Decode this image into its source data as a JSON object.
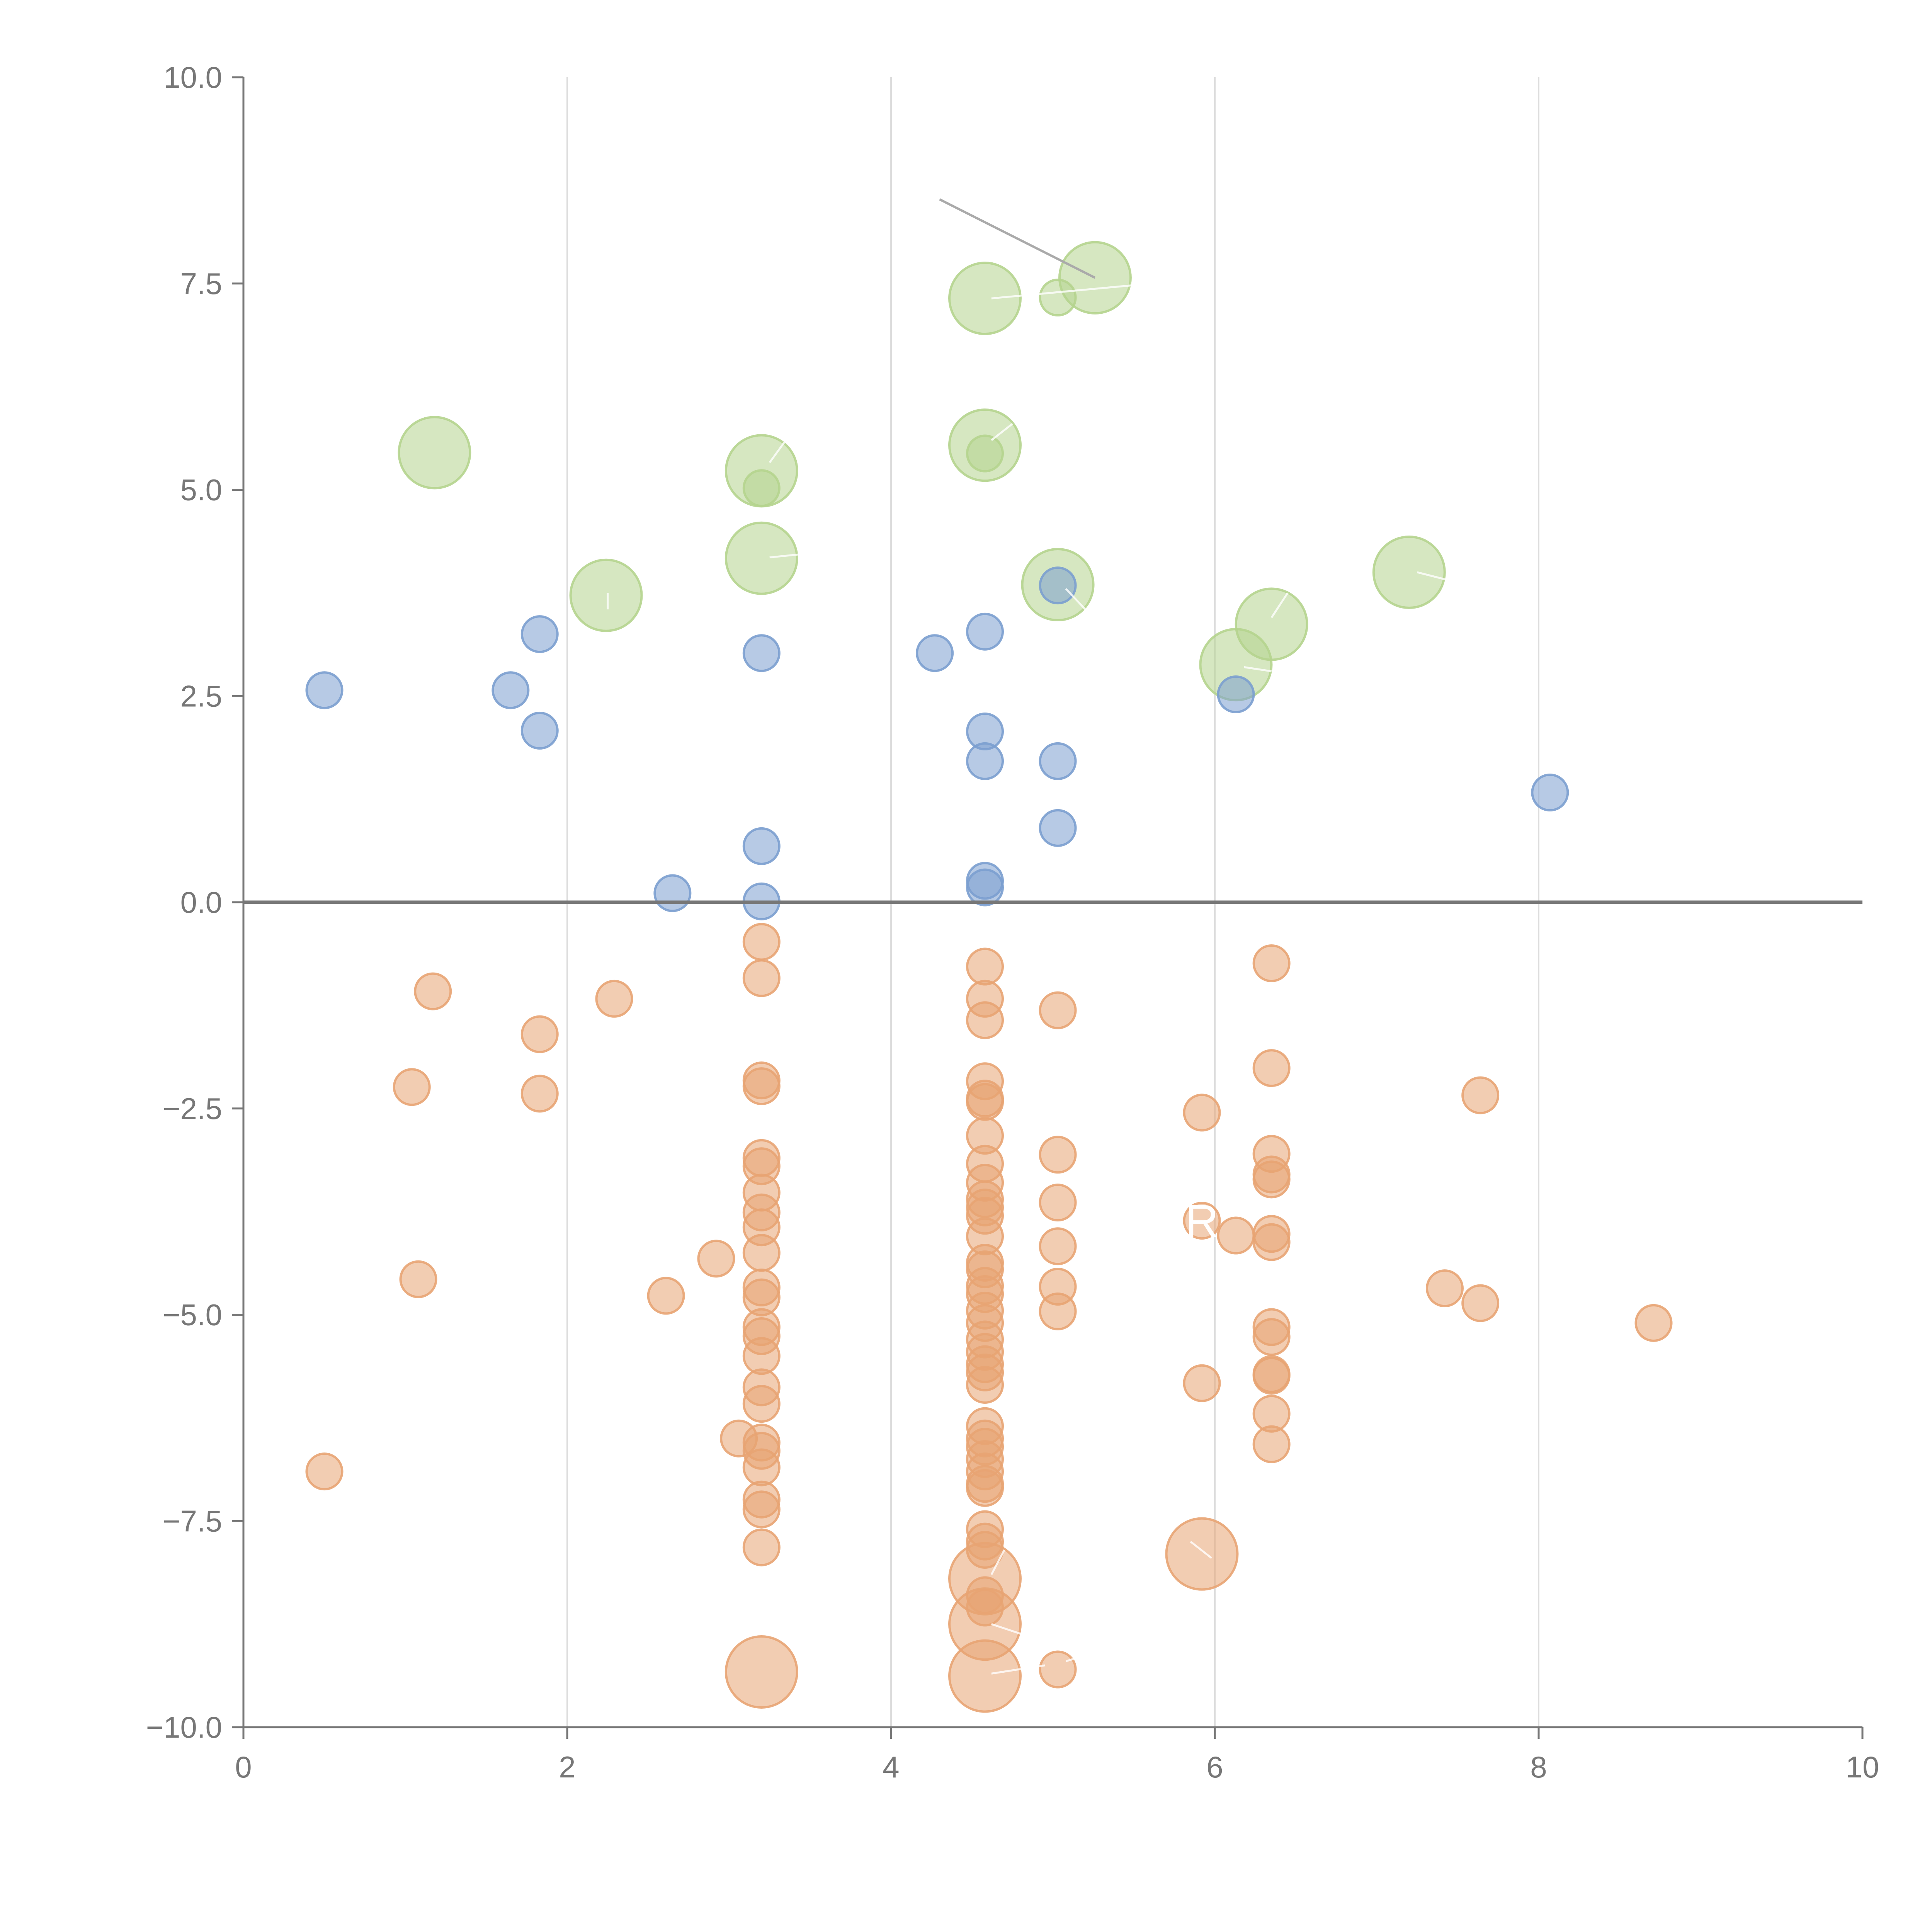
{
  "chart_data": {
    "type": "scatter",
    "title": "",
    "xlabel": "",
    "ylabel": "",
    "xlim": [
      0,
      10
    ],
    "ylim": [
      -10,
      10
    ],
    "x_ticks": [
      "0",
      "2",
      "4",
      "6",
      "8",
      "10"
    ],
    "y_ticks": [
      "−10.0",
      "−7.5",
      "−5.0",
      "−2.5",
      "0.0",
      "2.5",
      "5.0",
      "7.5",
      "10.0"
    ],
    "x_tick_values": [
      0,
      2,
      4,
      6,
      8,
      10
    ],
    "y_tick_values": [
      -10,
      -7.5,
      -5,
      -2.5,
      0,
      2.5,
      5,
      7.5,
      10
    ],
    "grid": "vertical",
    "reference_line_y": 0,
    "colors": {
      "green": "#b5d48e",
      "blue": "#7b9ecf",
      "orange": "#e8a473"
    },
    "series": [
      {
        "name": "green",
        "color": "#b5d48e",
        "points": [
          {
            "x": 1.18,
            "y": 5.45,
            "size": "large"
          },
          {
            "x": 2.24,
            "y": 3.72,
            "size": "large"
          },
          {
            "x": 3.2,
            "y": 5.23,
            "size": "large"
          },
          {
            "x": 3.2,
            "y": 5.02,
            "size": "small"
          },
          {
            "x": 3.2,
            "y": 4.17,
            "size": "large"
          },
          {
            "x": 4.58,
            "y": 7.32,
            "size": "large"
          },
          {
            "x": 5.03,
            "y": 7.33,
            "size": "small"
          },
          {
            "x": 5.26,
            "y": 7.57,
            "size": "large"
          },
          {
            "x": 4.58,
            "y": 5.54,
            "size": "large"
          },
          {
            "x": 4.58,
            "y": 5.44,
            "size": "small"
          },
          {
            "x": 5.03,
            "y": 3.85,
            "size": "large"
          },
          {
            "x": 6.35,
            "y": 3.37,
            "size": "large"
          },
          {
            "x": 6.13,
            "y": 2.88,
            "size": "large"
          },
          {
            "x": 7.2,
            "y": 4.0,
            "size": "large"
          }
        ]
      },
      {
        "name": "blue",
        "color": "#7b9ecf",
        "points": [
          {
            "x": 0.5,
            "y": 2.57
          },
          {
            "x": 1.65,
            "y": 2.57
          },
          {
            "x": 1.83,
            "y": 3.25
          },
          {
            "x": 1.83,
            "y": 2.08
          },
          {
            "x": 2.65,
            "y": 0.11
          },
          {
            "x": 3.2,
            "y": 3.02
          },
          {
            "x": 3.2,
            "y": 0.68
          },
          {
            "x": 3.2,
            "y": 0.01
          },
          {
            "x": 4.27,
            "y": 3.02
          },
          {
            "x": 4.58,
            "y": 3.28
          },
          {
            "x": 4.58,
            "y": 2.07
          },
          {
            "x": 4.58,
            "y": 1.71
          },
          {
            "x": 4.58,
            "y": 0.26
          },
          {
            "x": 4.58,
            "y": 0.18
          },
          {
            "x": 5.03,
            "y": 3.84
          },
          {
            "x": 5.03,
            "y": 1.71
          },
          {
            "x": 5.03,
            "y": 0.9
          },
          {
            "x": 6.13,
            "y": 2.52
          },
          {
            "x": 8.07,
            "y": 1.33
          }
        ]
      },
      {
        "name": "orange",
        "color": "#e8a473",
        "points": [
          {
            "x": 0.5,
            "y": -6.9
          },
          {
            "x": 1.04,
            "y": -2.24
          },
          {
            "x": 1.08,
            "y": -4.57
          },
          {
            "x": 1.17,
            "y": -1.08
          },
          {
            "x": 1.83,
            "y": -1.6
          },
          {
            "x": 1.83,
            "y": -2.32
          },
          {
            "x": 2.29,
            "y": -1.17
          },
          {
            "x": 2.61,
            "y": -4.77
          },
          {
            "x": 2.92,
            "y": -4.32
          },
          {
            "x": 3.06,
            "y": -6.5
          },
          {
            "x": 3.2,
            "y": -0.48
          },
          {
            "x": 3.2,
            "y": -0.92
          },
          {
            "x": 3.2,
            "y": -2.16
          },
          {
            "x": 3.2,
            "y": -2.23
          },
          {
            "x": 3.2,
            "y": -3.1
          },
          {
            "x": 3.2,
            "y": -3.2
          },
          {
            "x": 3.2,
            "y": -3.52
          },
          {
            "x": 3.2,
            "y": -3.76
          },
          {
            "x": 3.2,
            "y": -3.94
          },
          {
            "x": 3.2,
            "y": -4.25
          },
          {
            "x": 3.2,
            "y": -4.67
          },
          {
            "x": 3.2,
            "y": -4.79
          },
          {
            "x": 3.2,
            "y": -5.15
          },
          {
            "x": 3.2,
            "y": -5.26
          },
          {
            "x": 3.2,
            "y": -5.5
          },
          {
            "x": 3.2,
            "y": -5.88
          },
          {
            "x": 3.2,
            "y": -6.08
          },
          {
            "x": 3.2,
            "y": -6.55
          },
          {
            "x": 3.2,
            "y": -6.65
          },
          {
            "x": 3.2,
            "y": -6.85
          },
          {
            "x": 3.2,
            "y": -7.24
          },
          {
            "x": 3.2,
            "y": -7.36
          },
          {
            "x": 3.2,
            "y": -7.82
          },
          {
            "x": 3.2,
            "y": -9.33,
            "size": "large"
          },
          {
            "x": 4.58,
            "y": -0.78
          },
          {
            "x": 4.58,
            "y": -1.17
          },
          {
            "x": 4.58,
            "y": -1.43
          },
          {
            "x": 4.58,
            "y": -2.17
          },
          {
            "x": 4.58,
            "y": -2.38
          },
          {
            "x": 4.58,
            "y": -2.42
          },
          {
            "x": 4.58,
            "y": -2.83
          },
          {
            "x": 4.58,
            "y": -3.17
          },
          {
            "x": 4.58,
            "y": -3.4
          },
          {
            "x": 4.58,
            "y": -3.6
          },
          {
            "x": 4.58,
            "y": -3.7
          },
          {
            "x": 4.58,
            "y": -3.8
          },
          {
            "x": 4.58,
            "y": -4.05
          },
          {
            "x": 4.58,
            "y": -4.37
          },
          {
            "x": 4.58,
            "y": -4.45
          },
          {
            "x": 4.58,
            "y": -4.65
          },
          {
            "x": 4.58,
            "y": -4.75
          },
          {
            "x": 4.58,
            "y": -4.95
          },
          {
            "x": 4.58,
            "y": -5.1
          },
          {
            "x": 4.58,
            "y": -5.3
          },
          {
            "x": 4.58,
            "y": -5.45
          },
          {
            "x": 4.58,
            "y": -5.6
          },
          {
            "x": 4.58,
            "y": -5.7
          },
          {
            "x": 4.58,
            "y": -5.85
          },
          {
            "x": 4.58,
            "y": -6.35
          },
          {
            "x": 4.58,
            "y": -6.5
          },
          {
            "x": 4.58,
            "y": -6.6
          },
          {
            "x": 4.58,
            "y": -6.75
          },
          {
            "x": 4.58,
            "y": -6.9
          },
          {
            "x": 4.58,
            "y": -7.05
          },
          {
            "x": 4.58,
            "y": -7.1
          },
          {
            "x": 4.58,
            "y": -7.6
          },
          {
            "x": 4.58,
            "y": -7.75
          },
          {
            "x": 4.58,
            "y": -7.85
          },
          {
            "x": 4.58,
            "y": -8.2,
            "size": "large"
          },
          {
            "x": 4.58,
            "y": -8.4
          },
          {
            "x": 4.58,
            "y": -8.55
          },
          {
            "x": 4.58,
            "y": -8.75,
            "size": "large"
          },
          {
            "x": 4.58,
            "y": -9.38,
            "size": "large"
          },
          {
            "x": 5.03,
            "y": -1.31
          },
          {
            "x": 5.03,
            "y": -3.06
          },
          {
            "x": 5.03,
            "y": -3.64
          },
          {
            "x": 5.03,
            "y": -4.17
          },
          {
            "x": 5.03,
            "y": -4.66
          },
          {
            "x": 5.03,
            "y": -4.96
          },
          {
            "x": 5.03,
            "y": -9.3
          },
          {
            "x": 5.92,
            "y": -2.55
          },
          {
            "x": 5.92,
            "y": -3.86
          },
          {
            "x": 5.92,
            "y": -5.83
          },
          {
            "x": 5.92,
            "y": -7.9,
            "size": "large"
          },
          {
            "x": 6.13,
            "y": -4.04
          },
          {
            "x": 6.35,
            "y": -0.74
          },
          {
            "x": 6.35,
            "y": -2.01
          },
          {
            "x": 6.35,
            "y": -3.05
          },
          {
            "x": 6.35,
            "y": -3.3
          },
          {
            "x": 6.35,
            "y": -3.36
          },
          {
            "x": 6.35,
            "y": -4.02
          },
          {
            "x": 6.35,
            "y": -4.12
          },
          {
            "x": 6.35,
            "y": -5.15
          },
          {
            "x": 6.35,
            "y": -5.27
          },
          {
            "x": 6.35,
            "y": -5.72
          },
          {
            "x": 6.35,
            "y": -5.74
          },
          {
            "x": 6.35,
            "y": -6.2
          },
          {
            "x": 6.35,
            "y": -6.57
          },
          {
            "x": 7.42,
            "y": -4.68
          },
          {
            "x": 7.64,
            "y": -2.34
          },
          {
            "x": 7.64,
            "y": -4.86
          },
          {
            "x": 8.71,
            "y": -5.1
          }
        ]
      }
    ],
    "annotations": [
      {
        "text": "R",
        "x": 5.92,
        "y": -3.86
      }
    ]
  }
}
